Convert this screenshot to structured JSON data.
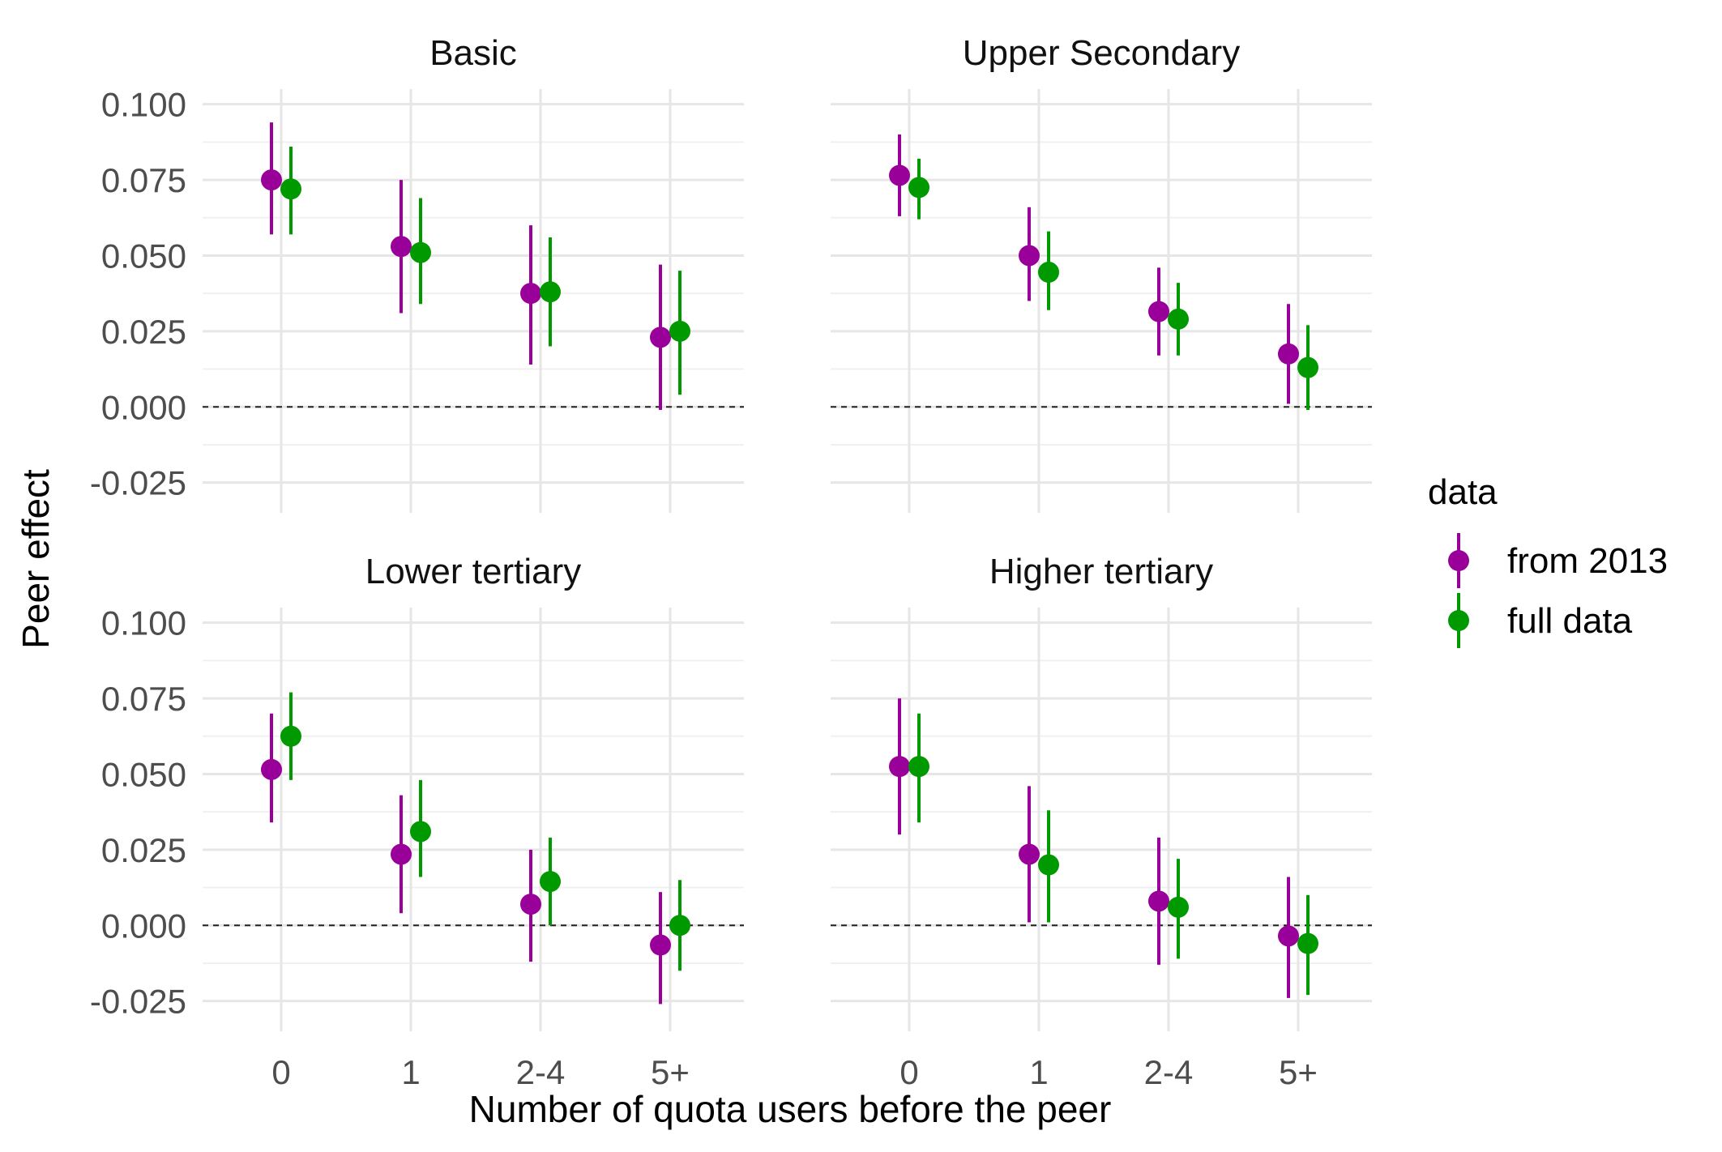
{
  "chart_data": {
    "type": "scatter",
    "subtype": "point-range faceted",
    "xlabel": "Number of quota users before the peer",
    "ylabel": "Peer effect",
    "categories": [
      "0",
      "1",
      "2-4",
      "5+"
    ],
    "ylim": [
      -0.035,
      0.105
    ],
    "yticks": [
      -0.025,
      0.0,
      0.025,
      0.05,
      0.075,
      0.1
    ],
    "ytick_labels": [
      "-0.025",
      "0.000",
      "0.025",
      "0.050",
      "0.075",
      "0.100"
    ],
    "reference_line": 0.0,
    "grid": true,
    "legend": {
      "title": "data",
      "position": "right",
      "entries": [
        {
          "name": "from 2013",
          "color": "#990099"
        },
        {
          "name": "full data",
          "color": "#009900"
        }
      ]
    },
    "panels": [
      {
        "title": "Basic",
        "series": [
          {
            "name": "from 2013",
            "values": [
              0.075,
              0.053,
              0.0375,
              0.023
            ],
            "lower": [
              0.057,
              0.031,
              0.014,
              -0.001
            ],
            "upper": [
              0.094,
              0.075,
              0.06,
              0.047
            ]
          },
          {
            "name": "full data",
            "values": [
              0.072,
              0.051,
              0.038,
              0.025
            ],
            "lower": [
              0.057,
              0.034,
              0.02,
              0.004
            ],
            "upper": [
              0.086,
              0.069,
              0.056,
              0.045
            ]
          }
        ]
      },
      {
        "title": "Upper Secondary",
        "series": [
          {
            "name": "from 2013",
            "values": [
              0.0765,
              0.05,
              0.0315,
              0.0175
            ],
            "lower": [
              0.063,
              0.035,
              0.017,
              0.001
            ],
            "upper": [
              0.09,
              0.066,
              0.046,
              0.034
            ]
          },
          {
            "name": "full data",
            "values": [
              0.0725,
              0.0445,
              0.029,
              0.013
            ],
            "lower": [
              0.062,
              0.032,
              0.017,
              -0.001
            ],
            "upper": [
              0.082,
              0.058,
              0.041,
              0.027
            ]
          }
        ]
      },
      {
        "title": "Lower tertiary",
        "series": [
          {
            "name": "from 2013",
            "values": [
              0.0515,
              0.0235,
              0.007,
              -0.0065
            ],
            "lower": [
              0.034,
              0.004,
              -0.012,
              -0.026
            ],
            "upper": [
              0.07,
              0.043,
              0.025,
              0.011
            ]
          },
          {
            "name": "full data",
            "values": [
              0.0625,
              0.031,
              0.0145,
              0.0
            ],
            "lower": [
              0.048,
              0.016,
              0.0,
              -0.015
            ],
            "upper": [
              0.077,
              0.048,
              0.029,
              0.015
            ]
          }
        ]
      },
      {
        "title": "Higher tertiary",
        "series": [
          {
            "name": "from 2013",
            "values": [
              0.0525,
              0.0235,
              0.008,
              -0.0035
            ],
            "lower": [
              0.03,
              0.001,
              -0.013,
              -0.024
            ],
            "upper": [
              0.075,
              0.046,
              0.029,
              0.016
            ]
          },
          {
            "name": "full data",
            "values": [
              0.0525,
              0.02,
              0.006,
              -0.006
            ],
            "lower": [
              0.034,
              0.001,
              -0.011,
              -0.023
            ],
            "upper": [
              0.07,
              0.038,
              0.022,
              0.01
            ]
          }
        ]
      }
    ]
  }
}
